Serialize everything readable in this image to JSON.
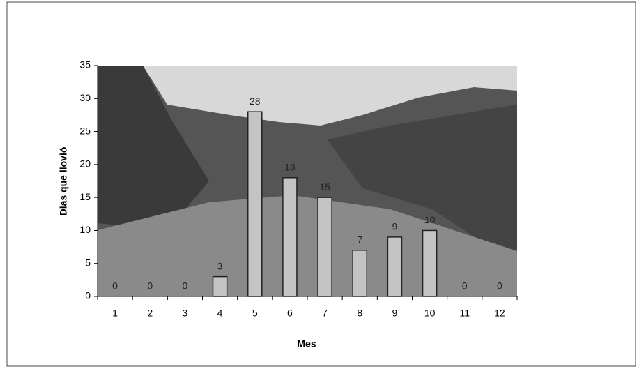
{
  "chart_data": {
    "type": "bar",
    "x_label": "Mes",
    "y_label": "Dias que llovió",
    "categories": [
      "1",
      "2",
      "3",
      "4",
      "5",
      "6",
      "7",
      "8",
      "9",
      "10",
      "11",
      "12"
    ],
    "values": [
      0,
      0,
      0,
      3,
      28,
      18,
      15,
      7,
      9,
      10,
      0,
      0
    ],
    "color": "#c4c4c4",
    "ylim": [
      0,
      35
    ],
    "yticks": [
      0,
      5,
      10,
      15,
      20,
      25,
      30,
      35
    ]
  }
}
